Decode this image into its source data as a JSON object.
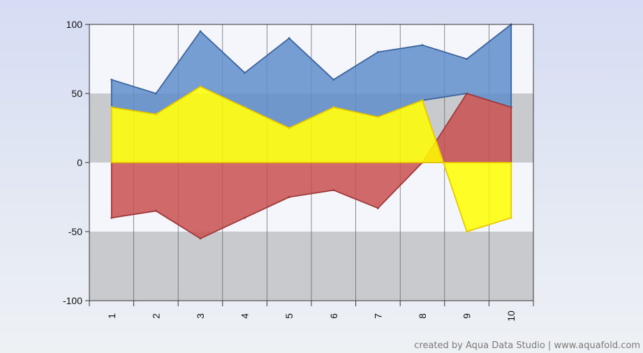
{
  "chart_data": {
    "type": "area",
    "title": "",
    "xlabel": "",
    "ylabel": "",
    "categories": [
      "1",
      "2",
      "3",
      "4",
      "5",
      "6",
      "7",
      "8",
      "9",
      "10"
    ],
    "ylim": [
      -100,
      100
    ],
    "yticks": [
      100,
      50,
      0,
      -50,
      -100
    ],
    "grid": true,
    "alternating_bands": true,
    "series": [
      {
        "values": [
          60,
          50,
          95,
          65,
          90,
          60,
          80,
          85,
          75,
          100
        ],
        "baseline": [
          40,
          35,
          55,
          40,
          25,
          40,
          33,
          45,
          50,
          40
        ],
        "color": "#5f8ecb",
        "stroke": "#3c64a0"
      },
      {
        "values": [
          -40,
          -35,
          -55,
          -40,
          -25,
          -20,
          -33,
          0,
          50,
          40
        ],
        "color": "#c85050",
        "stroke": "#a03a3a"
      },
      {
        "values": [
          40,
          35,
          55,
          40,
          25,
          40,
          33,
          45,
          -50,
          -40
        ],
        "color": "#ffff00",
        "stroke": "#e8c800"
      }
    ]
  },
  "credit_text": "created by Aqua Data Studio | www.aquafold.com"
}
